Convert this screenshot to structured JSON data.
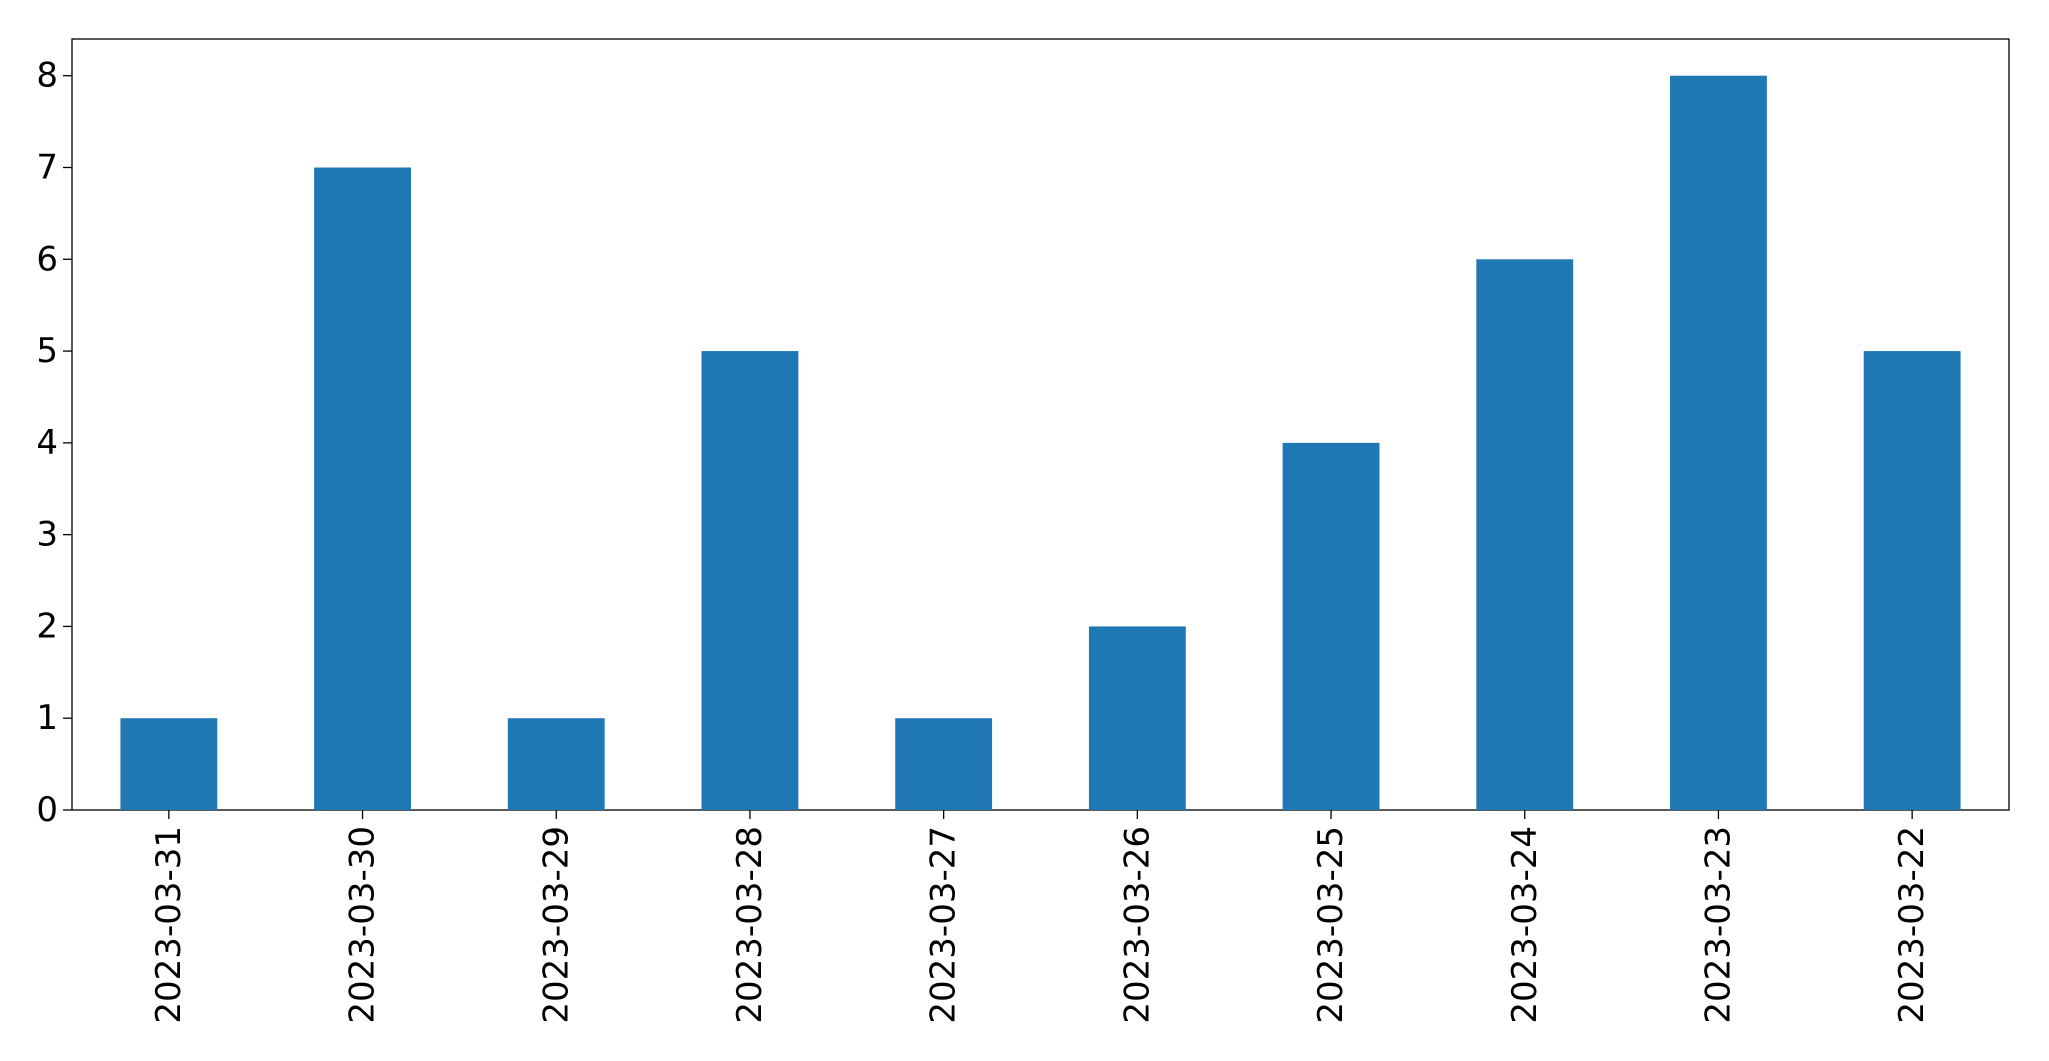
{
  "chart_data": {
    "type": "bar",
    "categories": [
      "2023-03-31",
      "2023-03-30",
      "2023-03-29",
      "2023-03-28",
      "2023-03-27",
      "2023-03-26",
      "2023-03-25",
      "2023-03-24",
      "2023-03-23",
      "2023-03-22"
    ],
    "values": [
      1,
      7,
      1,
      5,
      1,
      2,
      4,
      6,
      8,
      5
    ],
    "color": "#1f77b4",
    "ylim": [
      0,
      8.4
    ],
    "yticks": [
      0,
      1,
      2,
      3,
      4,
      5,
      6,
      7,
      8
    ],
    "grid": false
  }
}
